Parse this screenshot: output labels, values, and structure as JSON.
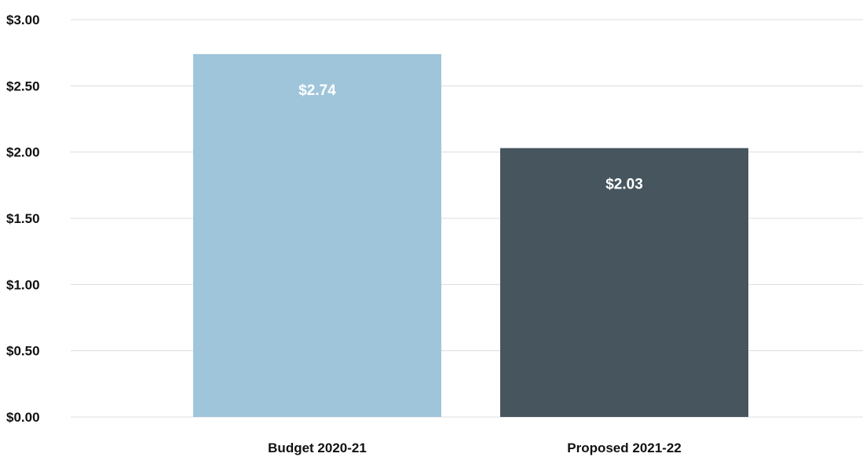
{
  "chart_data": {
    "type": "bar",
    "categories": [
      "Budget 2020-21",
      "Proposed 2021-22"
    ],
    "values": [
      2.74,
      2.03
    ],
    "data_labels": [
      "$2.74",
      "$2.03"
    ],
    "bar_colors": [
      "#9fc5db",
      "#46555e"
    ],
    "yticks": [
      0,
      0.5,
      1.0,
      1.5,
      2.0,
      2.5,
      3.0
    ],
    "ytick_labels": [
      "$0.00",
      "$0.50",
      "$1.00",
      "$1.50",
      "$2.00",
      "$2.50",
      "$3.00"
    ],
    "ylim": [
      0,
      3.0
    ],
    "grid": true,
    "title": "",
    "xlabel": "",
    "ylabel": ""
  }
}
